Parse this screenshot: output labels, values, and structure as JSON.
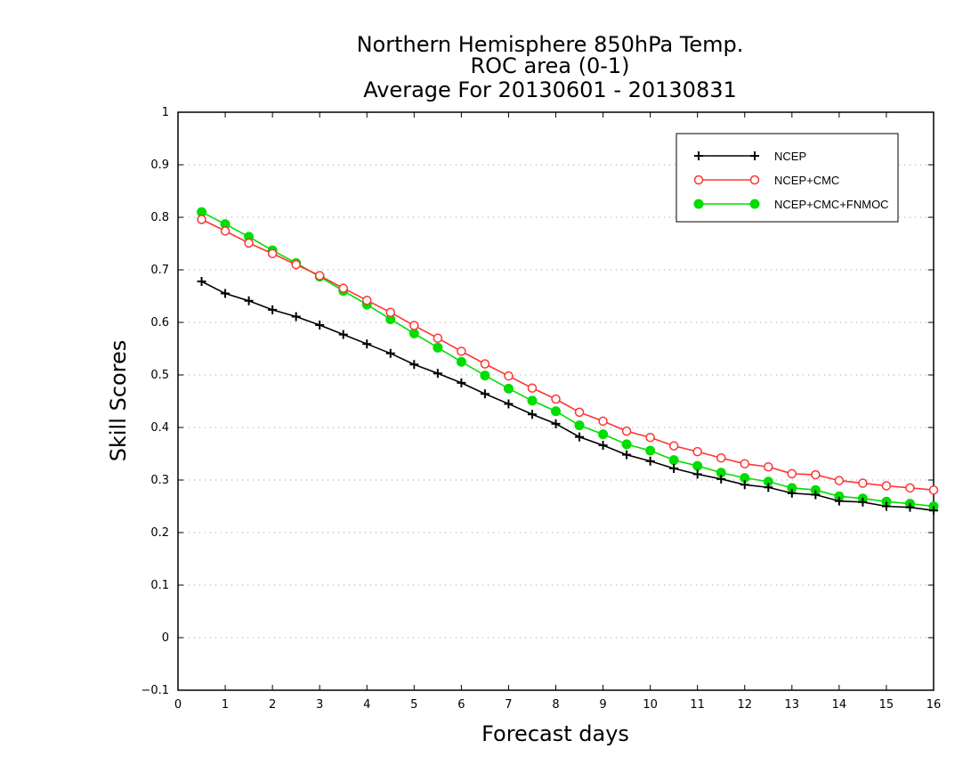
{
  "chart_data": {
    "type": "line",
    "title": [
      "Northern Hemisphere 850hPa Temp.",
      "ROC area (0-1)",
      "Average For 20130601 - 20130831"
    ],
    "xlabel": "Forecast days",
    "ylabel": "Skill Scores",
    "xlim": [
      0,
      16
    ],
    "ylim": [
      -0.1,
      1
    ],
    "xticks": [
      "0",
      "1",
      "2",
      "3",
      "4",
      "5",
      "6",
      "7",
      "8",
      "9",
      "10",
      "11",
      "12",
      "13",
      "14",
      "15",
      "16"
    ],
    "yticks": [
      "−0.1",
      "0",
      "0.1",
      "0.2",
      "0.3",
      "0.4",
      "0.5",
      "0.6",
      "0.7",
      "0.8",
      "0.9",
      "1"
    ],
    "grid": "horizontal dotted",
    "legend_position": "top-right",
    "x": [
      0.5,
      1.0,
      1.5,
      2.0,
      2.5,
      3.0,
      3.5,
      4.0,
      4.5,
      5.0,
      5.5,
      6.0,
      6.5,
      7.0,
      7.5,
      8.0,
      8.5,
      9.0,
      9.5,
      10.0,
      10.5,
      11.0,
      11.5,
      12.0,
      12.5,
      13.0,
      13.5,
      14.0,
      14.5,
      15.0,
      15.5,
      16.0
    ],
    "series": [
      {
        "name": "NCEP",
        "color": "#000000",
        "marker": "plus",
        "values": [
          0.678,
          0.655,
          0.641,
          0.624,
          0.611,
          0.595,
          0.577,
          0.559,
          0.541,
          0.52,
          0.503,
          0.485,
          0.464,
          0.445,
          0.425,
          0.407,
          0.382,
          0.366,
          0.348,
          0.336,
          0.322,
          0.311,
          0.302,
          0.291,
          0.286,
          0.275,
          0.272,
          0.26,
          0.258,
          0.25,
          0.248,
          0.242
        ]
      },
      {
        "name": "NCEP+CMC",
        "color": "#ff3333",
        "marker": "open-circle",
        "values": [
          0.796,
          0.774,
          0.751,
          0.731,
          0.71,
          0.689,
          0.665,
          0.642,
          0.619,
          0.594,
          0.57,
          0.545,
          0.521,
          0.498,
          0.475,
          0.454,
          0.429,
          0.412,
          0.393,
          0.381,
          0.365,
          0.354,
          0.342,
          0.331,
          0.325,
          0.312,
          0.31,
          0.299,
          0.294,
          0.289,
          0.285,
          0.281
        ]
      },
      {
        "name": "NCEP+CMC+FNMOC",
        "color": "#00dd00",
        "marker": "filled-circle",
        "values": [
          0.81,
          0.787,
          0.763,
          0.737,
          0.713,
          0.687,
          0.66,
          0.634,
          0.606,
          0.579,
          0.552,
          0.525,
          0.499,
          0.474,
          0.451,
          0.431,
          0.404,
          0.387,
          0.368,
          0.356,
          0.338,
          0.327,
          0.314,
          0.304,
          0.297,
          0.285,
          0.281,
          0.269,
          0.265,
          0.259,
          0.255,
          0.25
        ]
      }
    ]
  }
}
